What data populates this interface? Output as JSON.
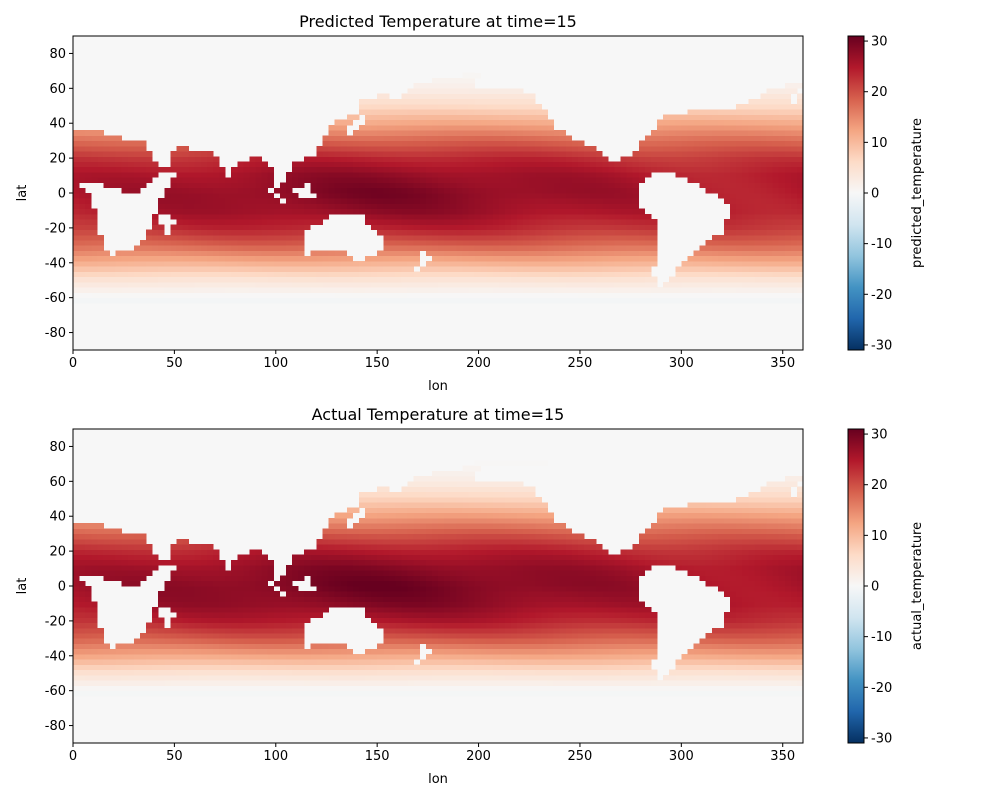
{
  "chart_data": [
    {
      "type": "heatmap",
      "title": "Predicted Temperature at time=15",
      "xlabel": "lon",
      "ylabel": "lat",
      "colorbar_label": "predicted_temperature",
      "xlim": [
        0,
        360
      ],
      "ylim": [
        -90,
        90
      ],
      "xticks": [
        0,
        50,
        100,
        150,
        200,
        250,
        300,
        350
      ],
      "yticks": [
        -80,
        -60,
        -40,
        -20,
        0,
        20,
        40,
        60,
        80
      ],
      "color_range": [
        -31,
        31
      ],
      "colorbar_ticks": [
        -30,
        -20,
        -10,
        0,
        10,
        20,
        30
      ],
      "colormap": "RdBu_r",
      "zonal_mean_profile": {
        "lat": [
          -90,
          -80,
          -70,
          -60,
          -50,
          -40,
          -30,
          -20,
          -10,
          0,
          10,
          20,
          30,
          40,
          50,
          60,
          70,
          80,
          90
        ],
        "values": [
          -1.5,
          -1.8,
          -1.5,
          -0.5,
          4,
          11,
          18,
          23,
          26,
          27,
          26,
          23,
          18,
          12,
          6,
          2,
          0,
          -1.2,
          -1.5
        ]
      },
      "mask": "ocean_only"
    },
    {
      "type": "heatmap",
      "title": "Actual Temperature at time=15",
      "xlabel": "lon",
      "ylabel": "lat",
      "colorbar_label": "actual_temperature",
      "xlim": [
        0,
        360
      ],
      "ylim": [
        -90,
        90
      ],
      "xticks": [
        0,
        50,
        100,
        150,
        200,
        250,
        300,
        350
      ],
      "yticks": [
        -80,
        -60,
        -40,
        -20,
        0,
        20,
        40,
        60,
        80
      ],
      "color_range": [
        -31,
        31
      ],
      "colorbar_ticks": [
        -30,
        -20,
        -10,
        0,
        10,
        20,
        30
      ],
      "colormap": "RdBu_r",
      "zonal_mean_profile": {
        "lat": [
          -90,
          -80,
          -70,
          -60,
          -50,
          -40,
          -30,
          -20,
          -10,
          0,
          10,
          20,
          30,
          40,
          50,
          60,
          70,
          80,
          90
        ],
        "values": [
          -1.5,
          -1.8,
          -1.5,
          -0.3,
          4.5,
          12,
          19,
          24,
          27,
          28,
          27,
          24,
          19,
          13,
          7,
          2.5,
          0.3,
          -1.2,
          -1.5
        ]
      },
      "mask": "ocean_only"
    }
  ]
}
